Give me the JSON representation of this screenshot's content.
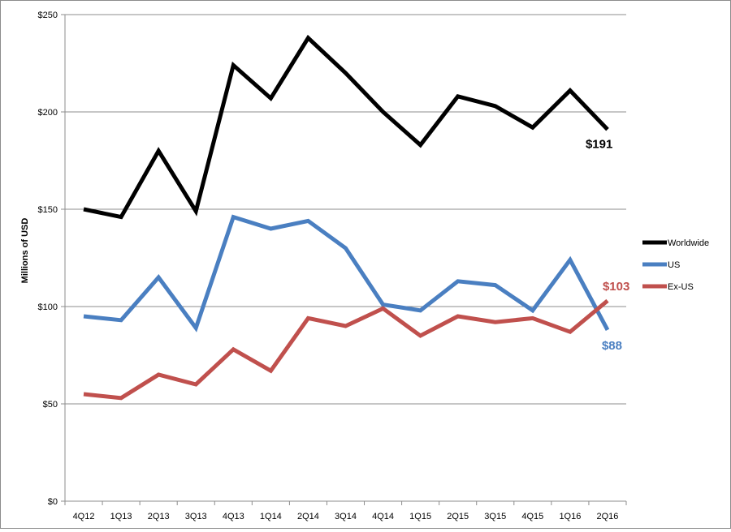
{
  "chart_data": {
    "type": "line",
    "title": "",
    "xlabel": "",
    "ylabel": "Millions  of USD",
    "ylim": [
      0,
      250
    ],
    "yticks": [
      0,
      50,
      100,
      150,
      200,
      250
    ],
    "ytick_labels": [
      "$0",
      "$50",
      "$100",
      "$150",
      "$200",
      "$250"
    ],
    "grid": "horizontal",
    "legend_position": "right",
    "categories": [
      "4Q12",
      "1Q13",
      "2Q13",
      "3Q13",
      "4Q13",
      "1Q14",
      "2Q14",
      "3Q14",
      "4Q14",
      "1Q15",
      "2Q15",
      "3Q15",
      "4Q15",
      "1Q16",
      "2Q16"
    ],
    "series": [
      {
        "name": "Worldwide",
        "color": "#000000",
        "values": [
          150,
          146,
          180,
          149,
          224,
          207,
          238,
          220,
          200,
          183,
          208,
          203,
          192,
          211,
          191
        ],
        "end_label": "$191"
      },
      {
        "name": "US",
        "color": "#4a7fc1",
        "values": [
          95,
          93,
          115,
          89,
          146,
          140,
          144,
          130,
          101,
          98,
          113,
          111,
          98,
          124,
          88
        ],
        "end_label": "$88"
      },
      {
        "name": "Ex-US",
        "color": "#c0504d",
        "values": [
          55,
          53,
          65,
          60,
          78,
          67,
          94,
          90,
          99,
          85,
          95,
          92,
          94,
          87,
          103
        ],
        "end_label": "$103"
      }
    ]
  }
}
